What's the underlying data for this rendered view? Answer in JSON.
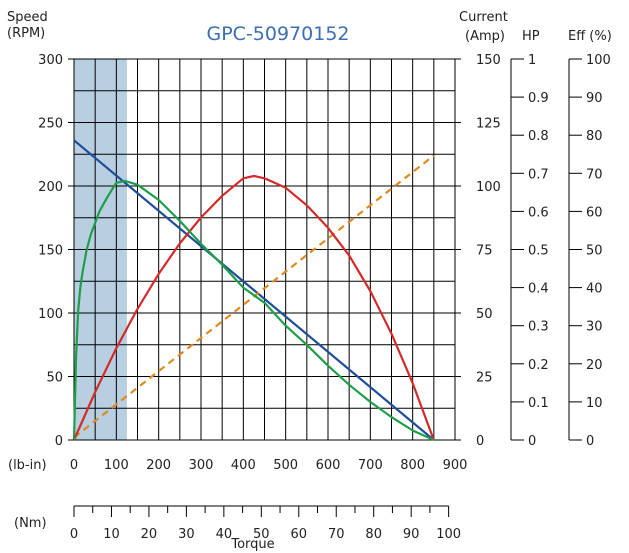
{
  "chart_data": {
    "type": "line",
    "title": "GPC-50970152",
    "title_color": "#3a6fb5",
    "xlabel": "Torque",
    "x_unit_primary": "(lb-in)",
    "x_unit_secondary": "(Nm)",
    "xlim": [
      0,
      900
    ],
    "x_ticks": [
      0,
      100,
      200,
      300,
      400,
      500,
      600,
      700,
      800,
      900
    ],
    "nm_ticks": [
      0,
      10,
      20,
      30,
      40,
      50,
      60,
      70,
      80,
      90,
      100
    ],
    "nm_range": [
      0,
      101.7
    ],
    "grid": true,
    "axes": {
      "speed": {
        "label_line1": "Speed",
        "label_line2": "(RPM)",
        "range": [
          0,
          300
        ],
        "ticks": [
          0,
          50,
          100,
          150,
          200,
          250,
          300
        ]
      },
      "current": {
        "label_line1": "Current",
        "label_line2": "(Amp)",
        "range": [
          0,
          150
        ],
        "ticks": [
          0,
          25,
          50,
          75,
          100,
          125,
          150
        ]
      },
      "hp": {
        "label": "HP",
        "range": [
          0,
          1
        ],
        "ticks": [
          0,
          0.1,
          0.2,
          0.3,
          0.4,
          0.5,
          0.6,
          0.7,
          0.8,
          0.9,
          1
        ]
      },
      "eff": {
        "label": "Eff (%)",
        "range": [
          0,
          100
        ],
        "ticks": [
          0,
          10,
          20,
          30,
          40,
          50,
          60,
          70,
          80,
          90,
          100
        ]
      }
    },
    "shaded_region": {
      "x": [
        0,
        125
      ],
      "color": "#b7cfe0"
    },
    "series": [
      {
        "id": "speed",
        "axis": "speed",
        "color": "#1f4e99",
        "dash": false,
        "x": [
          0,
          850
        ],
        "y": [
          236,
          0
        ]
      },
      {
        "id": "current",
        "axis": "current",
        "color": "#e08a1e",
        "dash": true,
        "x": [
          0,
          850
        ],
        "y": [
          1,
          112
        ]
      },
      {
        "id": "power",
        "axis": "hp",
        "color": "#d42a2a",
        "dash": false,
        "x": [
          0,
          50,
          100,
          150,
          200,
          250,
          300,
          350,
          400,
          425,
          450,
          500,
          550,
          600,
          650,
          700,
          750,
          800,
          850
        ],
        "y": [
          0,
          0.126,
          0.241,
          0.344,
          0.436,
          0.516,
          0.584,
          0.641,
          0.687,
          0.693,
          0.687,
          0.662,
          0.616,
          0.557,
          0.484,
          0.391,
          0.279,
          0.149,
          0
        ]
      },
      {
        "id": "efficiency",
        "axis": "eff",
        "color": "#1f9e4a",
        "dash": false,
        "x": [
          0,
          5,
          10,
          15,
          20,
          30,
          40,
          50,
          60,
          70,
          80,
          100,
          120,
          150,
          200,
          250,
          300,
          350,
          400,
          450,
          500,
          550,
          600,
          650,
          700,
          750,
          800,
          850
        ],
        "y": [
          0,
          22,
          34,
          40,
          44,
          50,
          54,
          57,
          60,
          62,
          64,
          67.5,
          68,
          67,
          63,
          57.5,
          51.5,
          46,
          40,
          36,
          30,
          25,
          19.5,
          14.5,
          10,
          6,
          2.5,
          0
        ]
      }
    ]
  }
}
